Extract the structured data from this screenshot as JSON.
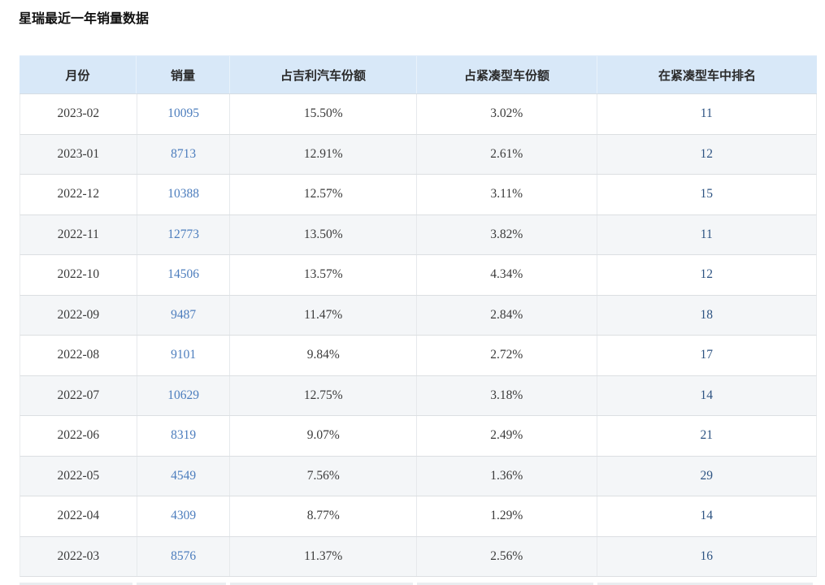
{
  "page_title": "星瑞最近一年销量数据",
  "colors": {
    "header_bg": "#d8e8f8",
    "stripe_bg": "#f4f6f8",
    "sales_link": "#4c7dbd",
    "rank_link": "#2d5382",
    "row_border": "#dcdfe2"
  },
  "table": {
    "headers": [
      "月份",
      "销量",
      "占吉利汽车份额",
      "占紧凑型车份额",
      "在紧凑型车中排名"
    ],
    "rows": [
      [
        "2023-02",
        "10095",
        "15.50%",
        "3.02%",
        "11"
      ],
      [
        "2023-01",
        "8713",
        "12.91%",
        "2.61%",
        "12"
      ],
      [
        "2022-12",
        "10388",
        "12.57%",
        "3.11%",
        "15"
      ],
      [
        "2022-11",
        "12773",
        "13.50%",
        "3.82%",
        "11"
      ],
      [
        "2022-10",
        "14506",
        "13.57%",
        "4.34%",
        "12"
      ],
      [
        "2022-09",
        "9487",
        "11.47%",
        "2.84%",
        "18"
      ],
      [
        "2022-08",
        "9101",
        "9.84%",
        "2.72%",
        "17"
      ],
      [
        "2022-07",
        "10629",
        "12.75%",
        "3.18%",
        "14"
      ],
      [
        "2022-06",
        "8319",
        "9.07%",
        "2.49%",
        "21"
      ],
      [
        "2022-05",
        "4549",
        "7.56%",
        "1.36%",
        "29"
      ],
      [
        "2022-04",
        "4309",
        "8.77%",
        "1.29%",
        "14"
      ],
      [
        "2022-03",
        "8576",
        "11.37%",
        "2.56%",
        "16"
      ]
    ]
  }
}
